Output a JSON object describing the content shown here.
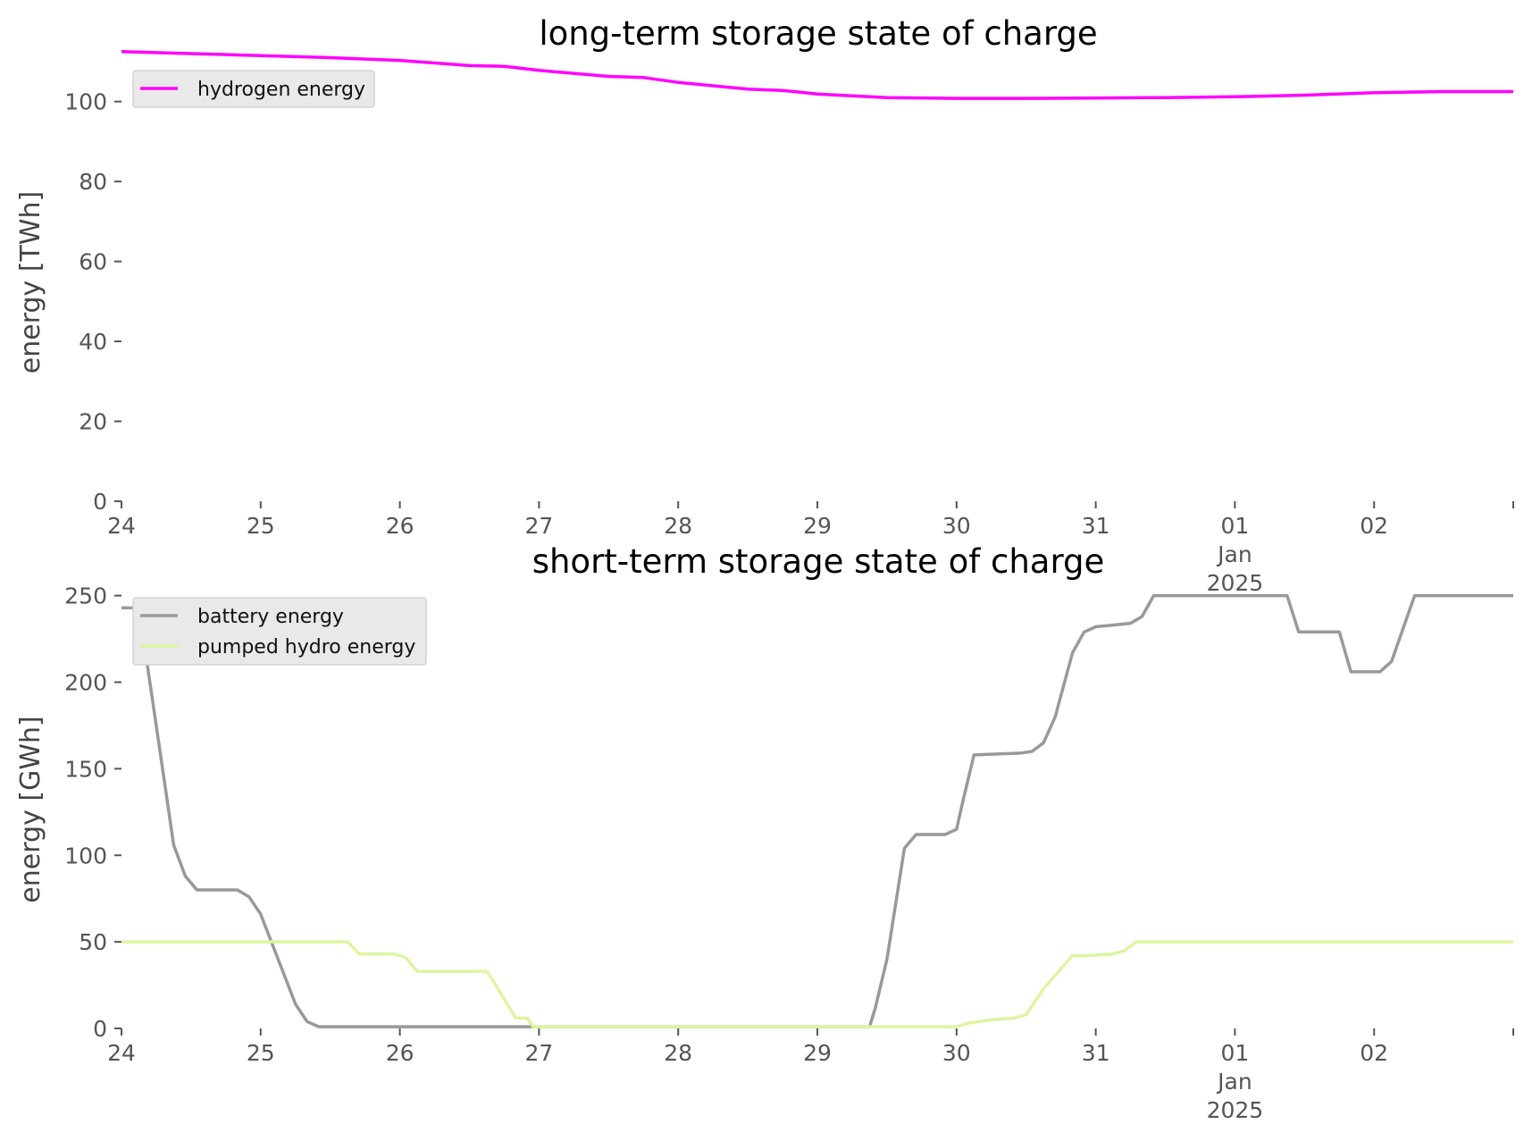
{
  "chart_data": [
    {
      "type": "line",
      "title": "long-term storage state of charge",
      "xlabel": "",
      "ylabel": "energy [TWh]",
      "xlim": [
        "2024-12-24",
        "2025-01-03"
      ],
      "ylim": [
        0,
        112
      ],
      "yticks": [
        0,
        20,
        40,
        60,
        80,
        100
      ],
      "xtick_labels": [
        {
          "date": "2024-12-24",
          "lines": [
            "24"
          ]
        },
        {
          "date": "2024-12-25",
          "lines": [
            "25"
          ]
        },
        {
          "date": "2024-12-26",
          "lines": [
            "26"
          ]
        },
        {
          "date": "2024-12-27",
          "lines": [
            "27"
          ]
        },
        {
          "date": "2024-12-28",
          "lines": [
            "28"
          ]
        },
        {
          "date": "2024-12-29",
          "lines": [
            "29"
          ]
        },
        {
          "date": "2024-12-30",
          "lines": [
            "30"
          ]
        },
        {
          "date": "2024-12-31",
          "lines": [
            "31"
          ]
        },
        {
          "date": "2025-01-01",
          "lines": [
            "01",
            "Jan",
            "2025"
          ]
        },
        {
          "date": "2025-01-02",
          "lines": [
            "02"
          ]
        },
        {
          "date": "2025-01-03",
          "lines": [
            ""
          ]
        }
      ],
      "grid": false,
      "legend": "top-left",
      "series": [
        {
          "name": "hydrogen energy",
          "color": "#ff00ff",
          "points": [
            [
              "2024-12-24 00:00",
              112.5
            ],
            [
              "2024-12-24 12:00",
              112.0
            ],
            [
              "2024-12-25 00:00",
              111.5
            ],
            [
              "2024-12-25 12:00",
              111.0
            ],
            [
              "2024-12-26 00:00",
              110.3
            ],
            [
              "2024-12-26 12:00",
              109.0
            ],
            [
              "2024-12-26 18:00",
              108.8
            ],
            [
              "2024-12-27 00:00",
              107.8
            ],
            [
              "2024-12-27 12:00",
              106.3
            ],
            [
              "2024-12-27 18:00",
              106.0
            ],
            [
              "2024-12-28 00:00",
              104.8
            ],
            [
              "2024-12-28 12:00",
              103.1
            ],
            [
              "2024-12-28 18:00",
              102.8
            ],
            [
              "2024-12-29 00:00",
              101.9
            ],
            [
              "2024-12-29 12:00",
              101.0
            ],
            [
              "2024-12-30 00:00",
              100.8
            ],
            [
              "2024-12-30 12:00",
              100.8
            ],
            [
              "2024-12-31 00:00",
              100.9
            ],
            [
              "2024-12-31 12:00",
              101.0
            ],
            [
              "2025-01-01 00:00",
              101.2
            ],
            [
              "2025-01-01 12:00",
              101.6
            ],
            [
              "2025-01-02 00:00",
              102.2
            ],
            [
              "2025-01-02 12:00",
              102.5
            ],
            [
              "2025-01-03 00:00",
              102.5
            ]
          ]
        }
      ]
    },
    {
      "type": "line",
      "title": "short-term storage state of charge",
      "xlabel": "",
      "ylabel": "energy [GWh]",
      "xlim": [
        "2024-12-24",
        "2025-01-03"
      ],
      "ylim": [
        0,
        256
      ],
      "yticks": [
        0,
        50,
        100,
        150,
        200,
        250
      ],
      "xtick_labels": [
        {
          "date": "2024-12-24",
          "lines": [
            "24"
          ]
        },
        {
          "date": "2024-12-25",
          "lines": [
            "25"
          ]
        },
        {
          "date": "2024-12-26",
          "lines": [
            "26"
          ]
        },
        {
          "date": "2024-12-27",
          "lines": [
            "27"
          ]
        },
        {
          "date": "2024-12-28",
          "lines": [
            "28"
          ]
        },
        {
          "date": "2024-12-29",
          "lines": [
            "29"
          ]
        },
        {
          "date": "2024-12-30",
          "lines": [
            "30"
          ]
        },
        {
          "date": "2024-12-31",
          "lines": [
            "31"
          ]
        },
        {
          "date": "2025-01-01",
          "lines": [
            "01",
            "Jan",
            "2025"
          ]
        },
        {
          "date": "2025-01-02",
          "lines": [
            "02"
          ]
        },
        {
          "date": "2025-01-03",
          "lines": [
            ""
          ]
        }
      ],
      "grid": false,
      "legend": "top-left",
      "series": [
        {
          "name": "battery energy",
          "color": "#999999",
          "points": [
            [
              "2024-12-24 00:00",
              243
            ],
            [
              "2024-12-24 03:00",
              243
            ],
            [
              "2024-12-24 06:00",
              175
            ],
            [
              "2024-12-24 09:00",
              106
            ],
            [
              "2024-12-24 11:00",
              88
            ],
            [
              "2024-12-24 13:00",
              80
            ],
            [
              "2024-12-24 20:00",
              80
            ],
            [
              "2024-12-24 22:00",
              76
            ],
            [
              "2024-12-25 00:00",
              66
            ],
            [
              "2024-12-25 03:00",
              40
            ],
            [
              "2024-12-25 06:00",
              14
            ],
            [
              "2024-12-25 08:00",
              4
            ],
            [
              "2024-12-25 10:00",
              1
            ],
            [
              "2024-12-25 12:00",
              1
            ],
            [
              "2024-12-29 09:00",
              1
            ],
            [
              "2024-12-29 10:00",
              12
            ],
            [
              "2024-12-29 12:00",
              40
            ],
            [
              "2024-12-29 15:00",
              104
            ],
            [
              "2024-12-29 17:00",
              112
            ],
            [
              "2024-12-29 22:00",
              112
            ],
            [
              "2024-12-30 00:00",
              115
            ],
            [
              "2024-12-30 01:00",
              130
            ],
            [
              "2024-12-30 03:00",
              158
            ],
            [
              "2024-12-30 11:00",
              159
            ],
            [
              "2024-12-30 13:00",
              160
            ],
            [
              "2024-12-30 15:00",
              165
            ],
            [
              "2024-12-30 17:00",
              180
            ],
            [
              "2024-12-30 20:00",
              217
            ],
            [
              "2024-12-30 22:00",
              229
            ],
            [
              "2024-12-31 00:00",
              232
            ],
            [
              "2024-12-31 06:00",
              234
            ],
            [
              "2024-12-31 08:00",
              238
            ],
            [
              "2024-12-31 10:00",
              250
            ],
            [
              "2025-01-01 09:00",
              250
            ],
            [
              "2025-01-01 11:00",
              229
            ],
            [
              "2025-01-01 18:00",
              229
            ],
            [
              "2025-01-01 20:00",
              206
            ],
            [
              "2025-01-02 01:00",
              206
            ],
            [
              "2025-01-02 03:00",
              212
            ],
            [
              "2025-01-02 07:00",
              250
            ],
            [
              "2025-01-03 00:00",
              250
            ]
          ]
        },
        {
          "name": "pumped hydro energy",
          "color": "#ddf5a0",
          "points": [
            [
              "2024-12-24 00:00",
              50
            ],
            [
              "2024-12-25 15:00",
              50
            ],
            [
              "2024-12-25 17:00",
              43
            ],
            [
              "2024-12-25 23:00",
              43
            ],
            [
              "2024-12-26 01:00",
              41
            ],
            [
              "2024-12-26 03:00",
              33
            ],
            [
              "2024-12-26 15:00",
              33
            ],
            [
              "2024-12-26 16:00",
              28
            ],
            [
              "2024-12-26 20:00",
              6
            ],
            [
              "2024-12-26 22:00",
              6
            ],
            [
              "2024-12-26 23:00",
              1
            ],
            [
              "2024-12-30 00:00",
              1
            ],
            [
              "2024-12-30 02:00",
              3
            ],
            [
              "2024-12-30 06:00",
              5
            ],
            [
              "2024-12-30 10:00",
              6
            ],
            [
              "2024-12-30 12:00",
              8
            ],
            [
              "2024-12-30 15:00",
              23
            ],
            [
              "2024-12-30 20:00",
              42
            ],
            [
              "2024-12-30 22:00",
              42
            ],
            [
              "2024-12-31 03:00",
              43
            ],
            [
              "2024-12-31 05:00",
              45
            ],
            [
              "2024-12-31 07:00",
              50
            ],
            [
              "2025-01-03 00:00",
              50
            ]
          ]
        }
      ]
    }
  ]
}
